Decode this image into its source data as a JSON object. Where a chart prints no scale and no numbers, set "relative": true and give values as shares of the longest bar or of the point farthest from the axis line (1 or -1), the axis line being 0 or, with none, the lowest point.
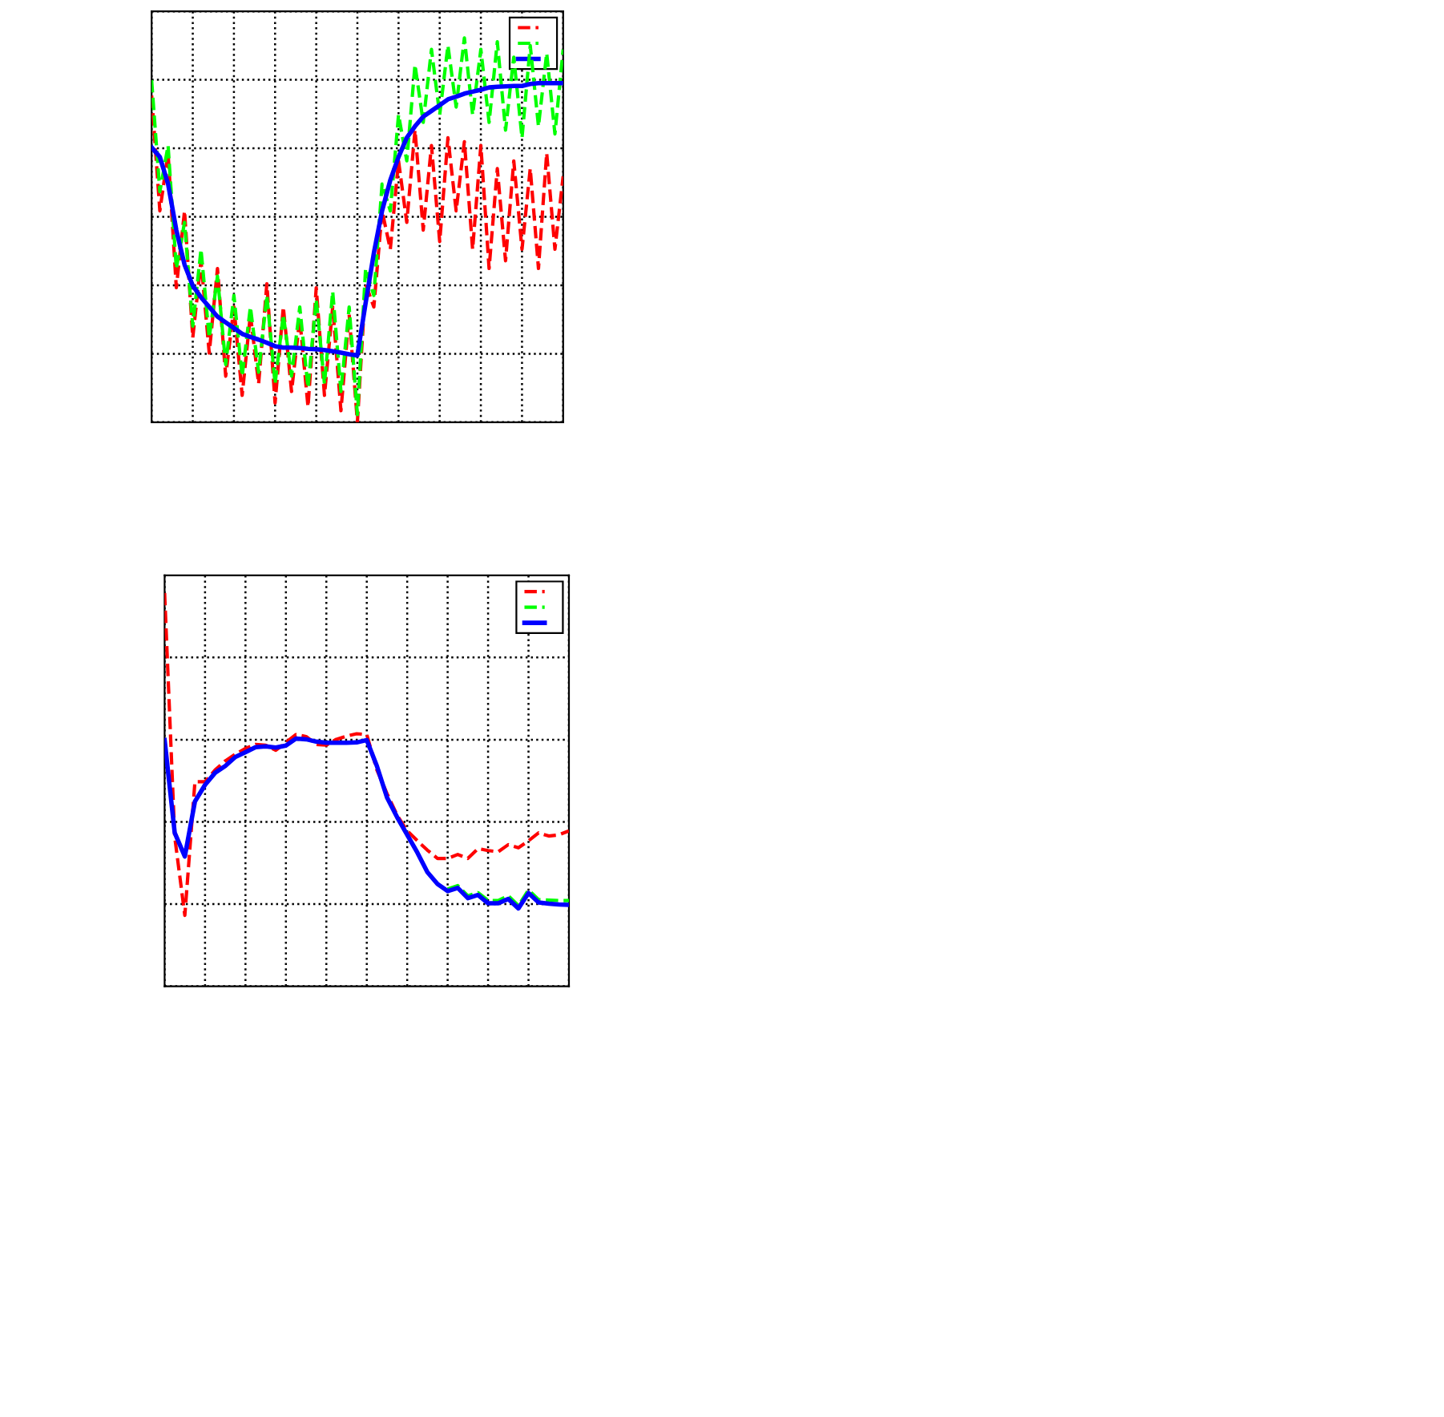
{
  "chart_data": [
    {
      "type": "line",
      "relative": true,
      "grid": true,
      "marker": "none",
      "categories": [
        null,
        null,
        null,
        null,
        null,
        null,
        null,
        null,
        null,
        null,
        null,
        null,
        null,
        null,
        null,
        null,
        null,
        null,
        null,
        null,
        null,
        null,
        null,
        null,
        null,
        null,
        null,
        null,
        null,
        null,
        null,
        null,
        null,
        null,
        null,
        null,
        null,
        null,
        null,
        null,
        null,
        null,
        null,
        null,
        null,
        null,
        null,
        null,
        null,
        null,
        null
      ],
      "series": [
        {
          "color": "#ff0000",
          "line_style": "dashed",
          "values": [
            0.85,
            0.55,
            0.7,
            0.35,
            0.55,
            0.22,
            0.42,
            0.18,
            0.4,
            0.12,
            0.3,
            0.07,
            0.28,
            0.1,
            0.36,
            0.05,
            0.3,
            0.08,
            0.27,
            0.04,
            0.35,
            0.07,
            0.3,
            0.03,
            0.28,
            0.0,
            0.36,
            0.3,
            0.55,
            0.45,
            0.68,
            0.52,
            0.76,
            0.5,
            0.72,
            0.47,
            0.74,
            0.55,
            0.73,
            0.45,
            0.72,
            0.4,
            0.66,
            0.42,
            0.68,
            0.45,
            0.66,
            0.4,
            0.7,
            0.45,
            0.64
          ]
        },
        {
          "color": "#00ff00",
          "line_style": "dashed",
          "values": [
            0.89,
            0.6,
            0.72,
            0.4,
            0.52,
            0.25,
            0.45,
            0.22,
            0.38,
            0.15,
            0.33,
            0.12,
            0.3,
            0.13,
            0.33,
            0.1,
            0.28,
            0.12,
            0.3,
            0.09,
            0.32,
            0.1,
            0.34,
            0.08,
            0.3,
            0.02,
            0.4,
            0.33,
            0.62,
            0.55,
            0.8,
            0.68,
            0.93,
            0.78,
            0.97,
            0.8,
            0.98,
            0.82,
            1.0,
            0.8,
            0.97,
            0.78,
            0.99,
            0.76,
            0.95,
            0.74,
            0.98,
            0.77,
            0.96,
            0.75,
            0.97
          ]
        },
        {
          "color": "#0000ff",
          "line_style": "solid",
          "values": [
            0.715,
            0.69,
            0.62,
            0.5,
            0.41,
            0.355,
            0.325,
            0.3,
            0.275,
            0.26,
            0.245,
            0.23,
            0.222,
            0.215,
            0.207,
            0.198,
            0.194,
            0.194,
            0.193,
            0.191,
            0.19,
            0.188,
            0.185,
            0.181,
            0.177,
            0.174,
            0.31,
            0.44,
            0.55,
            0.63,
            0.69,
            0.74,
            0.77,
            0.795,
            0.81,
            0.825,
            0.84,
            0.847,
            0.855,
            0.86,
            0.865,
            0.871,
            0.873,
            0.874,
            0.875,
            0.875,
            0.88,
            0.882,
            0.882,
            0.882,
            0.882
          ]
        }
      ]
    },
    {
      "type": "line",
      "relative": true,
      "grid": true,
      "marker": "none",
      "categories": [
        null,
        null,
        null,
        null,
        null,
        null,
        null,
        null,
        null,
        null,
        null,
        null,
        null,
        null,
        null,
        null,
        null,
        null,
        null,
        null,
        null,
        null,
        null,
        null,
        null,
        null,
        null,
        null,
        null,
        null,
        null,
        null,
        null,
        null,
        null,
        null,
        null,
        null,
        null,
        null,
        null
      ],
      "series": [
        {
          "color": "#ff0000",
          "line_style": "dashed",
          "values": [
            1.0,
            0.38,
            0.18,
            0.52,
            0.52,
            0.55,
            0.573,
            0.59,
            0.605,
            0.615,
            0.613,
            0.6,
            0.62,
            0.64,
            0.635,
            0.615,
            0.613,
            0.628,
            0.636,
            0.642,
            0.64,
            0.55,
            0.49,
            0.435,
            0.395,
            0.37,
            0.346,
            0.325,
            0.325,
            0.335,
            0.325,
            0.35,
            0.345,
            0.342,
            0.36,
            0.352,
            0.37,
            0.39,
            0.382,
            0.385,
            0.395
          ]
        },
        {
          "color": "#00ff00",
          "line_style": "dashed",
          "values": [
            null,
            null,
            null,
            null,
            null,
            null,
            null,
            null,
            null,
            null,
            null,
            null,
            null,
            null,
            null,
            null,
            null,
            null,
            null,
            null,
            null,
            null,
            null,
            null,
            null,
            null,
            null,
            null,
            0.247,
            0.256,
            0.23,
            0.238,
            0.218,
            0.218,
            0.23,
            0.205,
            0.245,
            0.22,
            0.219,
            0.218,
            0.218
          ]
        },
        {
          "color": "#0000ff",
          "line_style": "solid",
          "values": [
            0.626,
            0.39,
            0.33,
            0.47,
            0.512,
            0.543,
            0.56,
            0.583,
            0.595,
            0.608,
            0.61,
            0.607,
            0.612,
            0.63,
            0.628,
            0.622,
            0.619,
            0.619,
            0.619,
            0.62,
            0.626,
            0.56,
            0.48,
            0.43,
            0.385,
            0.34,
            0.29,
            0.26,
            0.242,
            0.25,
            0.224,
            0.232,
            0.211,
            0.211,
            0.222,
            0.198,
            0.237,
            0.213,
            0.21,
            0.208,
            0.207
          ]
        }
      ]
    }
  ]
}
